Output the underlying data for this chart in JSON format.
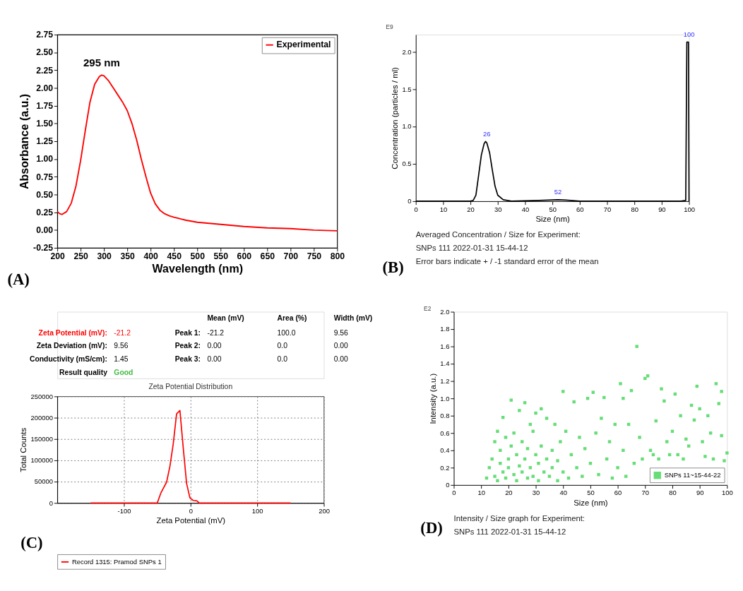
{
  "chart_data": [
    {
      "type": "line",
      "xlabel": "Wavelength (nm)",
      "ylabel": "Absorbance (a.u.)",
      "xlim": [
        200,
        800
      ],
      "ylim": [
        -0.25,
        2.75
      ],
      "xticks": [
        200,
        250,
        300,
        350,
        400,
        450,
        500,
        550,
        600,
        650,
        700,
        750,
        800
      ],
      "yticks": [
        {
          "value": -0.25,
          "label": "-0.25"
        },
        {
          "value": 0,
          "label": "0.00"
        },
        {
          "value": 0.25,
          "label": "0.25"
        },
        {
          "value": 0.5,
          "label": "0.50"
        },
        {
          "value": 0.75,
          "label": "0.75"
        },
        {
          "value": 1,
          "label": "1.00"
        },
        {
          "value": 1.25,
          "label": "1.25"
        },
        {
          "value": 1.5,
          "label": "1.50"
        },
        {
          "value": 1.75,
          "label": "1.75"
        },
        {
          "value": 2,
          "label": "2.00"
        },
        {
          "value": 2.25,
          "label": "2.25"
        },
        {
          "value": 2.5,
          "label": "2.50"
        },
        {
          "value": 2.75,
          "label": "2.75"
        }
      ],
      "grid": false,
      "legend": "top right",
      "marker": "none",
      "line_style": "solid",
      "annotations": [
        {
          "text": "295 nm",
          "x": 295,
          "y": 2.18
        },
        "(A)"
      ],
      "series": [
        {
          "name": "Experimental",
          "color": "#ff0000",
          "x": [
            200,
            205,
            210,
            220,
            230,
            240,
            250,
            260,
            270,
            280,
            290,
            295,
            300,
            310,
            320,
            330,
            340,
            350,
            360,
            370,
            380,
            390,
            400,
            410,
            420,
            430,
            440,
            450,
            475,
            500,
            550,
            600,
            650,
            700,
            750,
            800
          ],
          "values": [
            0.26,
            0.23,
            0.22,
            0.26,
            0.38,
            0.62,
            0.98,
            1.4,
            1.8,
            2.05,
            2.16,
            2.18,
            2.17,
            2.1,
            2.0,
            1.9,
            1.8,
            1.68,
            1.5,
            1.27,
            1.0,
            0.75,
            0.52,
            0.37,
            0.28,
            0.23,
            0.2,
            0.18,
            0.14,
            0.11,
            0.08,
            0.05,
            0.03,
            0.02,
            0.0,
            -0.01
          ]
        }
      ]
    },
    {
      "type": "line",
      "xlabel": "Size (nm)",
      "ylabel": "Concentration (particles / ml)",
      "xlim": [
        0,
        100
      ],
      "ylim": [
        0,
        2.23
      ],
      "xticks": [
        0,
        10,
        20,
        30,
        40,
        50,
        60,
        70,
        80,
        90,
        100
      ],
      "yticks": [
        0,
        0.5,
        {
          "value": 1,
          "label": "1.0"
        },
        1.5,
        {
          "value": 2,
          "label": "2.0"
        }
      ],
      "grid": false,
      "marker": "none",
      "line_style": "solid",
      "annotations": [
        {
          "text": "26",
          "x": 26,
          "y": 0.8
        },
        {
          "text": "52",
          "x": 52,
          "y": 0.02
        },
        {
          "text": "100",
          "x": 100,
          "y": 2.13
        },
        "E9",
        "Averaged Concentration / Size for Experiment:",
        "SNPs 111 2022-01-31 15-44-12",
        "Error bars indicate + / -1 standard error of the mean",
        "(B)"
      ],
      "series": [
        {
          "color": "#000000",
          "x": [
            0,
            20,
            21,
            22,
            23,
            24,
            25,
            25.5,
            26,
            27,
            28,
            29,
            30,
            32,
            35,
            45,
            52,
            55,
            60,
            97,
            98.8,
            99.2,
            99.8,
            100
          ],
          "values": [
            0,
            0,
            0.01,
            0.08,
            0.35,
            0.62,
            0.77,
            0.8,
            0.78,
            0.65,
            0.42,
            0.2,
            0.08,
            0.02,
            0,
            0.01,
            0.02,
            0.015,
            0,
            0,
            0.01,
            2.13,
            2.13,
            0
          ]
        }
      ]
    },
    {
      "type": "line",
      "title": "Zeta Potential Distribution",
      "xlabel": "Zeta Potential (mV)",
      "ylabel": "Total Counts",
      "xlim": [
        -200,
        200
      ],
      "ylim": [
        0,
        250000
      ],
      "xticks": [
        -100,
        0,
        100,
        200
      ],
      "yticks": [
        0,
        50000,
        100000,
        150000,
        200000,
        250000
      ],
      "grid": true,
      "legend": "bottom",
      "marker": "none",
      "line_style": "solid",
      "annotations": [
        "Mean (mV)",
        "Area (%)",
        "Width (mV)",
        "Zeta Potential (mV):",
        "-21.2",
        "Peak 1:",
        "-21.2",
        "100.0",
        "9.56",
        "Zeta Deviation (mV):",
        "9.56",
        "Peak 2:",
        "0.00",
        "0.0",
        "0.00",
        "Conductivity (mS/cm):",
        "1.45",
        "Peak 3:",
        "0.00",
        "0.0",
        "0.00",
        "Result quality",
        "Good",
        "(C)"
      ],
      "series": [
        {
          "name": "Record 1315: Pramod SNPs 1",
          "color": "#ff0000",
          "x": [
            -150,
            -50,
            -44.7,
            -36,
            -31,
            -26,
            -21,
            -16,
            -11,
            -6,
            -1,
            4,
            9.5,
            13,
            150
          ],
          "values": [
            0,
            0,
            23000,
            49000,
            86000,
            139000,
            209000,
            217000,
            129000,
            46000,
            12000,
            6000,
            5000,
            0,
            0
          ]
        }
      ]
    },
    {
      "type": "scatter",
      "xlabel": "Size (nm)",
      "ylabel": "Intensity (a.u.)",
      "xlim": [
        0,
        100
      ],
      "ylim": [
        0,
        2
      ],
      "xticks": [
        0,
        10,
        20,
        30,
        40,
        50,
        60,
        70,
        80,
        90,
        100
      ],
      "yticks": [
        0,
        0.2,
        0.4,
        0.6,
        0.8,
        {
          "value": 1,
          "label": "1.0"
        },
        1.2,
        1.4,
        1.6,
        1.8,
        {
          "value": 2,
          "label": "2.0"
        }
      ],
      "grid": false,
      "legend": "bottom right",
      "marker": "square",
      "annotations": [
        "E2",
        "Intensity / Size graph for Experiment:",
        "SNPs 111 2022-01-31 15-44-12",
        "(D)"
      ],
      "series": [
        {
          "name": "SNPs 11~15-44-22",
          "color": "#66dd77",
          "x": [
            12,
            13,
            14,
            15,
            15,
            16,
            16,
            17,
            17,
            18,
            18,
            19,
            19,
            20,
            20,
            21,
            21,
            22,
            22,
            23,
            23,
            24,
            24,
            25,
            25,
            26,
            26,
            27,
            27,
            28,
            28,
            29,
            29,
            30,
            30,
            31,
            31,
            32,
            32,
            33,
            34,
            34,
            35,
            36,
            36,
            37,
            38,
            38,
            39,
            40,
            40,
            41,
            42,
            43,
            44,
            45,
            46,
            47,
            48,
            49,
            50,
            51,
            52,
            53,
            54,
            55,
            56,
            57,
            58,
            59,
            60,
            61,
            62,
            62,
            63,
            64,
            65,
            66,
            67,
            68,
            69,
            70,
            71,
            72,
            73,
            74,
            75,
            76,
            77,
            78,
            79,
            80,
            81,
            82,
            83,
            84,
            85,
            86,
            87,
            88,
            89,
            90,
            91,
            92,
            93,
            94,
            95,
            96,
            97,
            98,
            98,
            99,
            100
          ],
          "values": [
            0.08,
            0.2,
            0.3,
            0.1,
            0.5,
            0.05,
            0.62,
            0.25,
            0.4,
            0.15,
            0.78,
            0.55,
            0.08,
            0.3,
            0.2,
            0.98,
            0.45,
            0.12,
            0.6,
            0.35,
            0.05,
            0.86,
            0.22,
            0.5,
            0.15,
            0.95,
            0.3,
            0.08,
            0.42,
            0.2,
            0.7,
            0.62,
            0.1,
            0.83,
            0.35,
            0.25,
            0.05,
            0.88,
            0.45,
            0.15,
            0.3,
            0.77,
            0.1,
            0.4,
            0.2,
            0.7,
            0.05,
            0.28,
            0.5,
            0.15,
            1.08,
            0.62,
            0.08,
            0.35,
            0.96,
            0.2,
            0.55,
            0.1,
            0.42,
            1.0,
            0.25,
            1.07,
            0.6,
            0.12,
            0.77,
            1.01,
            0.3,
            0.5,
            0.08,
            0.7,
            0.2,
            1.17,
            1.0,
            0.4,
            0.1,
            0.7,
            1.09,
            0.25,
            1.6,
            0.55,
            0.3,
            1.23,
            1.26,
            0.4,
            0.35,
            0.74,
            0.3,
            1.11,
            0.97,
            0.5,
            0.35,
            0.62,
            1.05,
            0.35,
            0.8,
            0.3,
            0.53,
            0.45,
            0.92,
            0.75,
            1.14,
            0.88,
            0.5,
            0.33,
            0.8,
            0.6,
            0.3,
            1.17,
            0.94,
            1.08,
            0.57,
            0.28,
            0.37
          ]
        }
      ]
    }
  ]
}
